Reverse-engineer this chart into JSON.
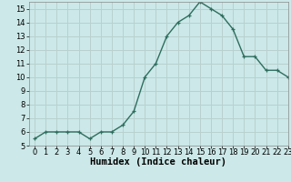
{
  "x": [
    0,
    1,
    2,
    3,
    4,
    5,
    6,
    7,
    8,
    9,
    10,
    11,
    12,
    13,
    14,
    15,
    16,
    17,
    18,
    19,
    20,
    21,
    22,
    23
  ],
  "y": [
    5.5,
    6.0,
    6.0,
    6.0,
    6.0,
    5.5,
    6.0,
    6.0,
    6.5,
    7.5,
    10.0,
    11.0,
    13.0,
    14.0,
    14.5,
    15.5,
    15.0,
    14.5,
    13.5,
    11.5,
    11.5,
    10.5,
    10.5,
    10.0
  ],
  "xlabel": "Humidex (Indice chaleur)",
  "xlim": [
    -0.5,
    23
  ],
  "ylim": [
    5,
    15.5
  ],
  "yticks": [
    5,
    6,
    7,
    8,
    9,
    10,
    11,
    12,
    13,
    14,
    15
  ],
  "xticks": [
    0,
    1,
    2,
    3,
    4,
    5,
    6,
    7,
    8,
    9,
    10,
    11,
    12,
    13,
    14,
    15,
    16,
    17,
    18,
    19,
    20,
    21,
    22,
    23
  ],
  "line_color": "#2d6e5e",
  "marker": "+",
  "bg_color": "#cce8e8",
  "grid_color": "#b8d0d0",
  "label_fontsize": 7.5,
  "tick_fontsize": 6.0,
  "markersize": 3.5,
  "linewidth": 1.0
}
